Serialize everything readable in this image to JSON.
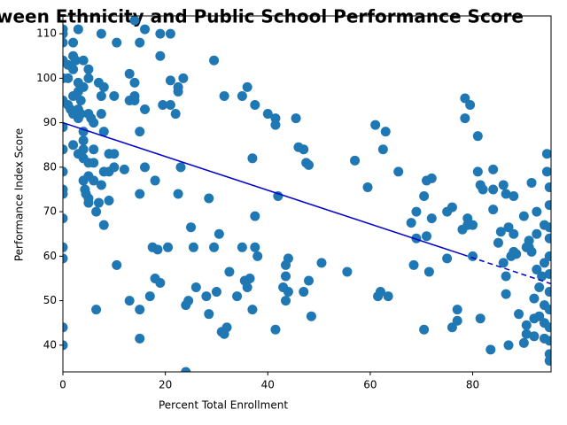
{
  "chart_data": {
    "type": "scatter",
    "title": "ween Ethnicity and Public School Performance Score",
    "xlabel": "Percent Total Enrollment",
    "ylabel": "Performance Index Score",
    "color": "#1f77b4",
    "x": [
      0,
      0,
      0,
      0,
      0,
      0,
      0,
      0,
      0,
      0,
      0,
      0,
      0,
      0,
      0,
      0,
      1,
      1,
      1,
      1.5,
      2,
      2,
      2,
      2,
      2,
      2,
      2.5,
      3,
      3,
      3,
      3,
      3,
      3,
      3.5,
      3.5,
      4,
      4,
      4,
      4,
      4,
      4,
      4,
      4.3,
      4.5,
      5,
      5,
      5,
      5,
      5,
      5,
      5,
      5.5,
      6,
      6,
      6,
      6,
      6.5,
      6.5,
      7,
      7,
      7.5,
      7.5,
      7.5,
      7.5,
      8,
      8,
      8,
      8,
      9,
      9,
      9,
      10,
      10,
      10,
      10.5,
      10.5,
      12,
      13,
      13,
      13,
      14,
      14,
      14,
      14,
      15,
      15,
      15,
      15,
      15,
      16,
      16,
      16,
      17,
      17.5,
      18,
      18,
      18.5,
      19,
      19,
      19,
      19.5,
      20.5,
      21,
      21,
      21,
      22,
      22.5,
      22.5,
      23,
      22.5,
      23.5,
      24,
      24,
      24.5,
      25,
      25.5,
      26,
      28,
      28.5,
      28.5,
      29.5,
      29.5,
      30,
      30.5,
      31,
      31.5,
      31.5,
      32,
      32.5,
      34,
      35,
      35,
      35.5,
      36,
      36,
      36.5,
      37,
      37,
      37.5,
      37.5,
      37.5,
      38,
      40,
      41.5,
      41.5,
      41.5,
      42,
      43,
      43.5,
      43.5,
      43.5,
      44,
      44,
      45.5,
      46,
      47,
      47,
      47.5,
      48,
      48,
      48.5,
      50.5,
      55.5,
      57,
      59.5,
      61,
      61.5,
      62,
      62.5,
      63,
      63.5,
      65.5,
      68,
      68.5,
      69,
      69,
      70.5,
      70.5,
      71,
      71,
      71.5,
      72,
      72,
      75,
      75,
      76,
      76,
      77,
      77,
      78,
      78.5,
      78.5,
      79,
      79,
      79.5,
      80,
      80,
      81,
      81,
      81.5,
      81.5,
      82,
      83.5,
      84,
      84,
      84,
      85,
      85.5,
      86,
      86,
      86.5,
      86.5,
      86.5,
      87,
      87,
      87.5,
      88,
      88,
      88,
      88.5,
      89,
      90,
      90,
      90.5,
      90.5,
      90.5,
      91,
      91,
      91.5,
      91.5,
      92,
      92,
      92,
      92.5,
      92.5,
      92.5,
      93,
      93,
      93.5,
      94,
      94,
      94,
      94,
      94,
      94.5,
      94.5,
      95,
      95,
      95,
      95,
      95,
      95,
      95,
      95,
      95,
      95,
      95,
      95
    ],
    "values": [
      111,
      110,
      108,
      104,
      100,
      95,
      89,
      84,
      79,
      75,
      74,
      68.5,
      62,
      59.5,
      44,
      40,
      103,
      100,
      94,
      93,
      108,
      105,
      102,
      96,
      92,
      85,
      104,
      111,
      99,
      97,
      93,
      91,
      83,
      95,
      92,
      104,
      98,
      88,
      86,
      84,
      82,
      77,
      75,
      74,
      102,
      100,
      92,
      81,
      78,
      73,
      72,
      91,
      90,
      84,
      81,
      77,
      70,
      48,
      99,
      72,
      110,
      96,
      92,
      76,
      98,
      88,
      79,
      67,
      83,
      79,
      72.5,
      96,
      83,
      80,
      108,
      58,
      79.5,
      101,
      95,
      50,
      99,
      96,
      95,
      113,
      88,
      74,
      108,
      48,
      41.5,
      111,
      93,
      80,
      51,
      62,
      77,
      55,
      61.5,
      105,
      110,
      54,
      94,
      62,
      110,
      99.5,
      94,
      92,
      98,
      97,
      80,
      74,
      100,
      49,
      34,
      50,
      66.5,
      62,
      53,
      51,
      73,
      47,
      104,
      62,
      52,
      65,
      43,
      96,
      42.5,
      44,
      56.5,
      51,
      96,
      62,
      54.5,
      98,
      53,
      55,
      82,
      48,
      94,
      69,
      62,
      60,
      92,
      91,
      89.5,
      43.5,
      73.5,
      53,
      58,
      55.5,
      50,
      52,
      59.5,
      91,
      84.5,
      84,
      52,
      81,
      80.5,
      54.5,
      46.5,
      58.5,
      56.5,
      81.5,
      75.5,
      89.5,
      51,
      52,
      84,
      88,
      51,
      79,
      67.5,
      58,
      70,
      64,
      73.5,
      43.5,
      77,
      64.5,
      56.5,
      68.5,
      77.5,
      59.5,
      70,
      71,
      44,
      48,
      45.5,
      66,
      95.5,
      91,
      68.5,
      67,
      94,
      67,
      60,
      79,
      87,
      46,
      76,
      75,
      39,
      75,
      79.5,
      70.5,
      63,
      65.5,
      76,
      58.5,
      74,
      51.5,
      55.5,
      40,
      66.5,
      60,
      65,
      73.5,
      61,
      60.5,
      47,
      69,
      40.5,
      62,
      42.5,
      44.5,
      63.5,
      62,
      76.5,
      61,
      46,
      50.5,
      42,
      65,
      70,
      57,
      46.5,
      53,
      55.5,
      58.5,
      49,
      67,
      45,
      41.5,
      83,
      79,
      75.5,
      71.5,
      66.5,
      64,
      60,
      56,
      52,
      48,
      44,
      41,
      38,
      36.5
    ],
    "lines": [
      {
        "x": [
          0,
          78
        ],
        "y": [
          90,
          60.4
        ],
        "style": "solid"
      },
      {
        "x": [
          78,
          95.3
        ],
        "y": [
          60.4,
          53.8
        ],
        "style": "dashed"
      }
    ],
    "line_color": "#0000cc",
    "xlim": [
      0,
      95.3
    ],
    "ylim": [
      34,
      114
    ],
    "xticks": [
      0,
      20,
      40,
      60,
      80
    ],
    "yticks": [
      40,
      50,
      60,
      70,
      80,
      90,
      100,
      110
    ]
  }
}
